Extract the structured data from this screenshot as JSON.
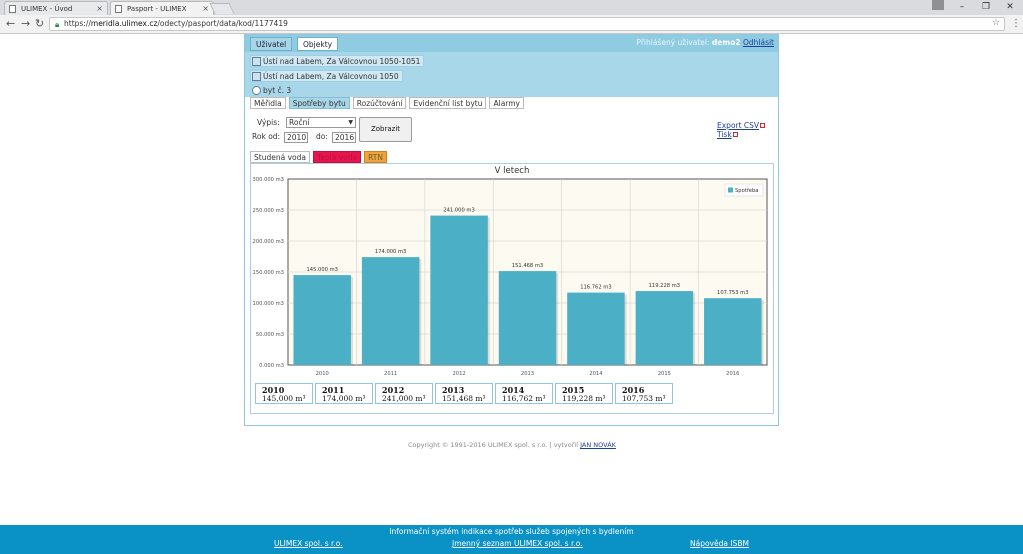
{
  "browser": {
    "tabs": [
      {
        "title": "ULIMEX - Úvod",
        "close": "×"
      },
      {
        "title": "Pasport - ULIMEX",
        "close": "×"
      }
    ],
    "url_prefix": "https://",
    "url_host": "meridla.ulimex.cz",
    "url_path": "/odecty/pasport/data/kod/1177419"
  },
  "nav": {
    "tabs": [
      "Uživatel",
      "Objekty"
    ],
    "logged_label": "Přihlášený uživatel:",
    "username": "demo2",
    "logout": "Odhlásit"
  },
  "location": {
    "rows": [
      "Ústí nad Labem, Za Válcovnou 1050-1051",
      "Ústí nad Labem, Za Válcovnou 1050",
      "byt č. 3"
    ]
  },
  "subtabs": [
    "Měřidla",
    "Spotřeby bytu",
    "Rozúčtování",
    "Evidenční list bytu",
    "Alarmy"
  ],
  "form": {
    "vypis_label": "Výpis:",
    "vypis_value": "Roční",
    "rok_od_label": "Rok od:",
    "rok_od_value": "2010",
    "do_label": "do:",
    "do_value": "2016",
    "submit": "Zobrazit"
  },
  "links": {
    "export": "Export CSV",
    "print": "Tisk"
  },
  "media_tabs": [
    "Studená voda",
    "Teplá voda",
    "RTN"
  ],
  "chart_data": {
    "type": "bar",
    "title": "V letech",
    "categories": [
      "2010",
      "2011",
      "2012",
      "2013",
      "2014",
      "2015",
      "2016"
    ],
    "values": [
      145.0,
      174.0,
      241.0,
      151.468,
      116.762,
      119.228,
      107.753
    ],
    "data_labels": [
      "145.000 m3",
      "174.000 m3",
      "241.000 m3",
      "151.468 m3",
      "116.762 m3",
      "119.228 m3",
      "107.753 m3"
    ],
    "series": [
      {
        "name": "Spotřeba",
        "values": [
          145.0,
          174.0,
          241.0,
          151.468,
          116.762,
          119.228,
          107.753
        ]
      }
    ],
    "ylim": [
      0,
      300
    ],
    "yticks": [
      0,
      50,
      100,
      150,
      200,
      250,
      300
    ],
    "ytick_labels": [
      "0.000 m3",
      "50.000 m3",
      "100.000 m3",
      "150.000 m3",
      "200.000 m3",
      "250.000 m3",
      "300.000 m3"
    ],
    "grid": true,
    "legend": "top-right",
    "bar_color": "#4bb0c6"
  },
  "totals": [
    {
      "year": "2010",
      "value": "145,000 m³"
    },
    {
      "year": "2011",
      "value": "174,000 m³"
    },
    {
      "year": "2012",
      "value": "241,000 m³"
    },
    {
      "year": "2013",
      "value": "151,468 m³"
    },
    {
      "year": "2014",
      "value": "116,762 m³"
    },
    {
      "year": "2015",
      "value": "119,228 m³"
    },
    {
      "year": "2016",
      "value": "107,753 m³"
    }
  ],
  "copyright": {
    "text": "Copyright © 1991-2016 ULIMEX spol. s r.o. | vytvořil",
    "author": "JAN NOVÁK"
  },
  "footer": {
    "title": "Informační systém indikace spotřeb služeb spojených s bydlením",
    "links": [
      "ULIMEX spol. s r.o.",
      "Jmenný seznam ULIMEX spol. s r.o.",
      "Nápověda ISBM"
    ]
  }
}
